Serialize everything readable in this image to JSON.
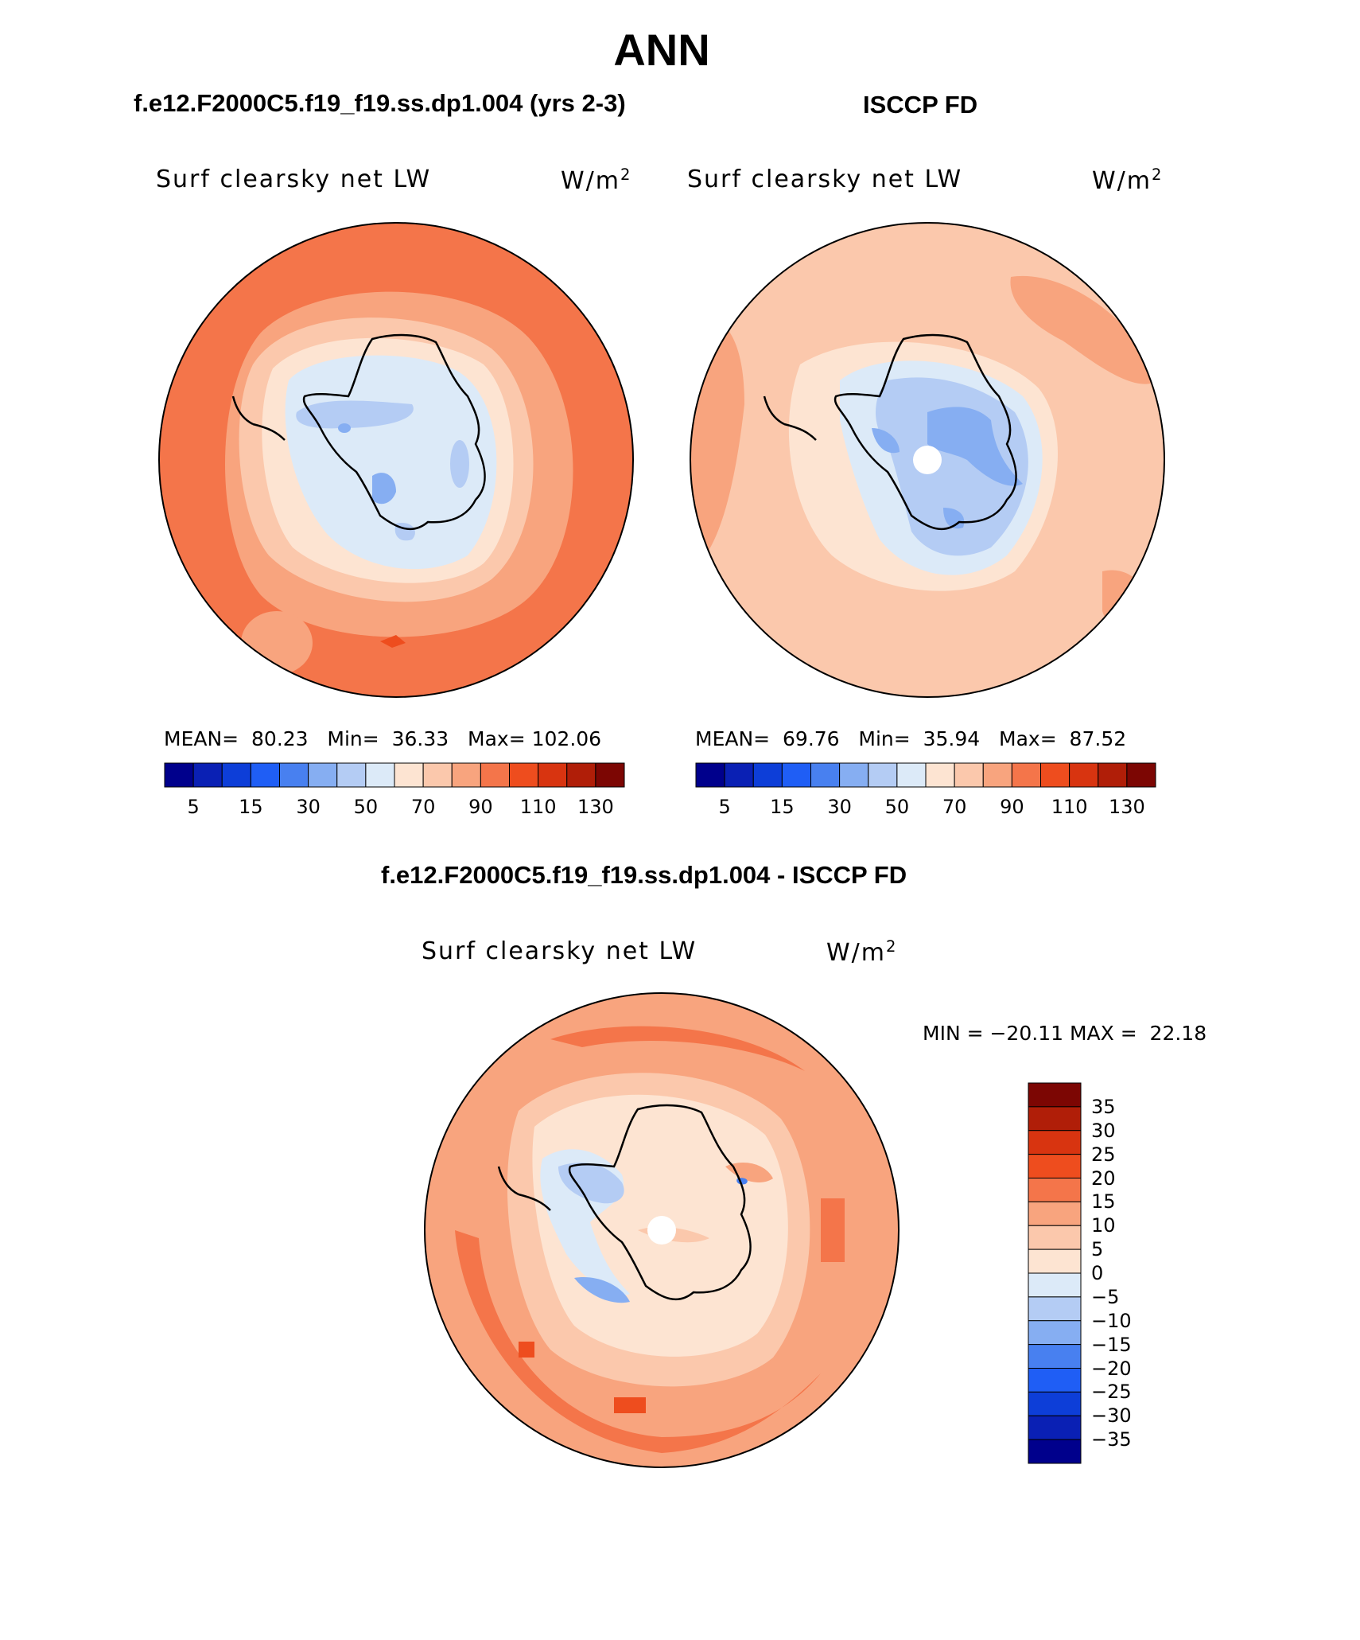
{
  "figure": {
    "title": "ANN",
    "diff_title": "f.e12.F2000C5.f19_f19.ss.dp1.004 - ISCCP FD"
  },
  "panels": {
    "model": {
      "title": "f.e12.F2000C5.f19_f19.ss.dp1.004 (yrs 2-3)",
      "variable": "Surf clearsky net LW",
      "units_base": "W/m",
      "units_exp": "2",
      "stats_text": "MEAN=  80.23   Min=  36.33   Max= 102.06"
    },
    "obs": {
      "title": "ISCCP FD",
      "variable": "Surf clearsky net LW",
      "units_base": "W/m",
      "units_exp": "2",
      "stats_text": "MEAN=  69.76   Min=  35.94   Max=  87.52"
    },
    "diff": {
      "variable": "Surf clearsky net LW",
      "units_base": "W/m",
      "units_exp": "2",
      "stats_text": "MIN = −20.11 MAX =  22.18"
    }
  },
  "colorbars": {
    "fields": {
      "colors": [
        "#00008c",
        "#0a20b4",
        "#0d3ed8",
        "#1f5ef5",
        "#4880f0",
        "#86aef2",
        "#b4ccf4",
        "#dceaf8",
        "#fde4d2",
        "#fbc8ac",
        "#f8a47e",
        "#f4754a",
        "#ee4d1e",
        "#d83410",
        "#b01e08",
        "#7c0603"
      ],
      "labels": [
        "5",
        "15",
        "30",
        "50",
        "70",
        "90",
        "110",
        "130"
      ]
    },
    "diff": {
      "colors": [
        "#7c0603",
        "#b01e08",
        "#d83410",
        "#ee4d1e",
        "#f4754a",
        "#f8a47e",
        "#fbc8ac",
        "#fde4d2",
        "#dceaf8",
        "#b4ccf4",
        "#86aef2",
        "#4880f0",
        "#1f5ef5",
        "#0d3ed8",
        "#0a20b4",
        "#00008c"
      ],
      "labels": [
        "35",
        "30",
        "25",
        "20",
        "15",
        "10",
        "5",
        "0",
        "−5",
        "−10",
        "−15",
        "−20",
        "−25",
        "−30",
        "−35"
      ]
    }
  }
}
